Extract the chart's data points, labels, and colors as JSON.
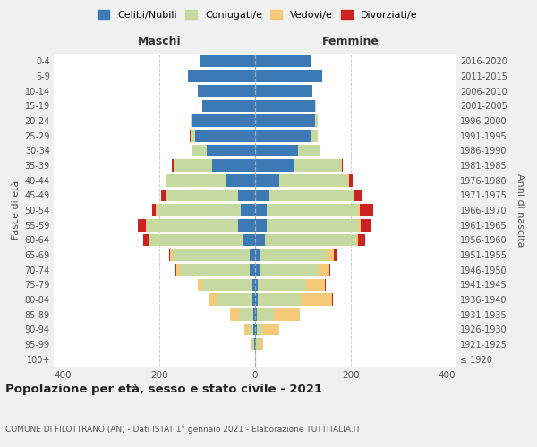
{
  "age_groups": [
    "100+",
    "95-99",
    "90-94",
    "85-89",
    "80-84",
    "75-79",
    "70-74",
    "65-69",
    "60-64",
    "55-59",
    "50-54",
    "45-49",
    "40-44",
    "35-39",
    "30-34",
    "25-29",
    "20-24",
    "15-19",
    "10-14",
    "5-9",
    "0-4"
  ],
  "birth_years": [
    "≤ 1920",
    "1921-1925",
    "1926-1930",
    "1931-1935",
    "1936-1940",
    "1941-1945",
    "1946-1950",
    "1951-1955",
    "1956-1960",
    "1961-1965",
    "1966-1970",
    "1971-1975",
    "1976-1980",
    "1981-1985",
    "1986-1990",
    "1991-1995",
    "1996-2000",
    "2001-2005",
    "2006-2010",
    "2011-2015",
    "2016-2020"
  ],
  "colors": {
    "celibi": "#3d7ab5",
    "coniugati": "#c5d9a0",
    "vedovi": "#f5c97a",
    "divorziati": "#cc2222"
  },
  "maschi": {
    "celibi": [
      0,
      2,
      3,
      3,
      5,
      6,
      12,
      12,
      25,
      35,
      30,
      35,
      60,
      90,
      100,
      125,
      130,
      110,
      120,
      140,
      115
    ],
    "coniugati": [
      0,
      3,
      10,
      30,
      75,
      105,
      145,
      160,
      195,
      190,
      175,
      150,
      125,
      80,
      30,
      10,
      5,
      1,
      0,
      0,
      0
    ],
    "vedovi": [
      0,
      2,
      10,
      20,
      15,
      8,
      8,
      5,
      3,
      2,
      2,
      1,
      0,
      0,
      0,
      0,
      0,
      0,
      0,
      0,
      0
    ],
    "divorziati": [
      0,
      0,
      0,
      0,
      0,
      0,
      2,
      2,
      10,
      18,
      8,
      10,
      2,
      3,
      2,
      1,
      0,
      0,
      0,
      0,
      0
    ]
  },
  "femmine": {
    "celibi": [
      0,
      2,
      3,
      4,
      5,
      6,
      10,
      10,
      20,
      25,
      25,
      30,
      50,
      80,
      90,
      115,
      125,
      125,
      120,
      140,
      115
    ],
    "coniugati": [
      0,
      5,
      12,
      35,
      90,
      100,
      120,
      140,
      190,
      190,
      190,
      175,
      145,
      100,
      45,
      15,
      5,
      2,
      0,
      0,
      0
    ],
    "vedovi": [
      2,
      10,
      35,
      55,
      65,
      40,
      25,
      15,
      5,
      5,
      3,
      2,
      1,
      1,
      0,
      0,
      0,
      0,
      0,
      0,
      0
    ],
    "divorziati": [
      0,
      0,
      0,
      0,
      2,
      2,
      2,
      5,
      15,
      20,
      28,
      15,
      8,
      2,
      2,
      1,
      0,
      0,
      0,
      0,
      0
    ]
  },
  "title": "Popolazione per età, sesso e stato civile - 2021",
  "subtitle": "COMUNE DI FILOTTRANO (AN) - Dati ISTAT 1° gennaio 2021 - Elaborazione TUTTITALIA.IT",
  "xlabel_left": "Maschi",
  "xlabel_right": "Femmine",
  "ylabel_left": "Fasce di età",
  "ylabel_right": "Anni di nascita",
  "xlim": 420,
  "legend_labels": [
    "Celibi/Nubili",
    "Coniugati/e",
    "Vedovi/e",
    "Divorziati/e"
  ],
  "bg_color": "#f0f0f0",
  "plot_bg": "#ffffff"
}
